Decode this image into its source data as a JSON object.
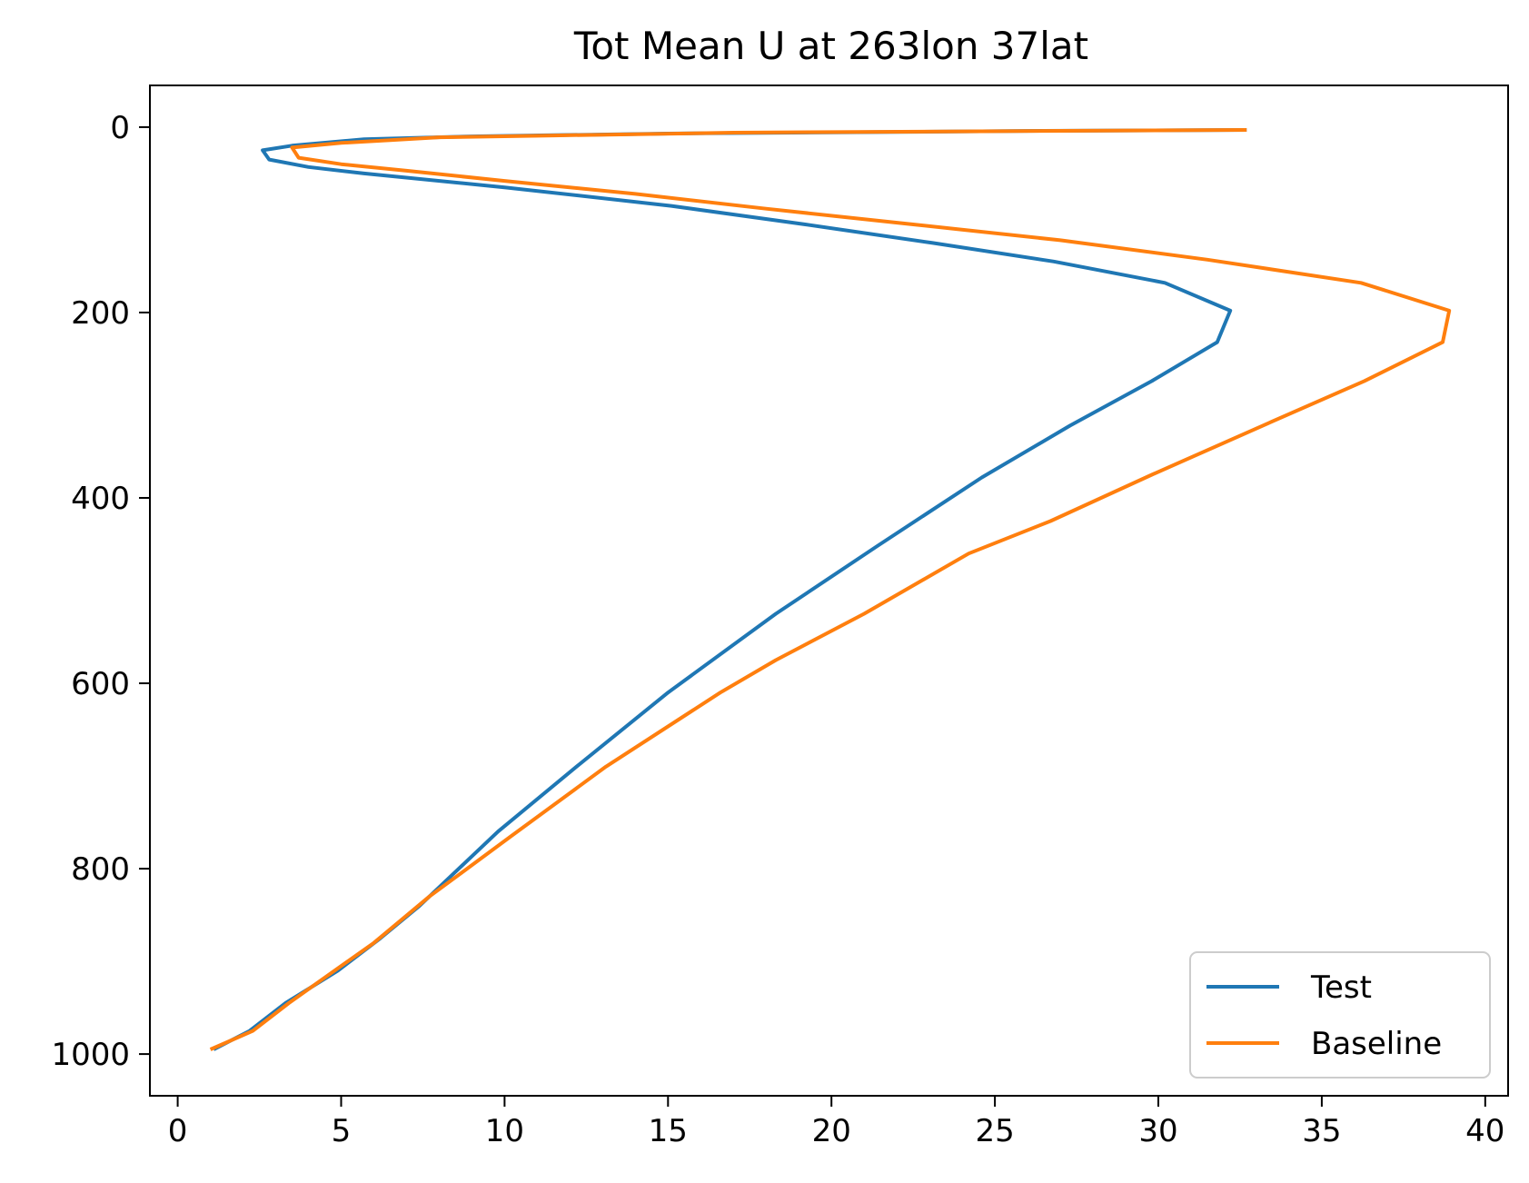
{
  "chart_data": {
    "type": "line",
    "title": "Tot Mean U at 263lon 37lat",
    "xlabel": "",
    "ylabel": "",
    "xlim": [
      -0.85,
      40.7
    ],
    "ylim": [
      1045,
      -45
    ],
    "y_inverted": true,
    "grid": false,
    "legend_position": "lower-right",
    "x_ticks": [
      0,
      5,
      10,
      15,
      20,
      25,
      30,
      35,
      40
    ],
    "y_ticks": [
      0,
      200,
      400,
      600,
      800,
      1000
    ],
    "series": [
      {
        "name": "Test",
        "color": "#1f77b4",
        "points": [
          [
            32.7,
            3
          ],
          [
            26.5,
            4
          ],
          [
            15.0,
            7
          ],
          [
            9.0,
            10
          ],
          [
            5.7,
            13
          ],
          [
            3.5,
            20
          ],
          [
            2.6,
            25
          ],
          [
            2.8,
            35
          ],
          [
            4.0,
            43
          ],
          [
            5.7,
            50
          ],
          [
            10.0,
            65
          ],
          [
            15.1,
            85
          ],
          [
            19.2,
            105
          ],
          [
            23.1,
            125
          ],
          [
            26.8,
            145
          ],
          [
            30.2,
            168
          ],
          [
            32.2,
            198
          ],
          [
            31.8,
            232
          ],
          [
            29.8,
            274
          ],
          [
            27.3,
            322
          ],
          [
            24.6,
            378
          ],
          [
            21.4,
            452
          ],
          [
            18.3,
            525
          ],
          [
            15.0,
            610
          ],
          [
            12.2,
            690
          ],
          [
            9.8,
            760
          ],
          [
            7.4,
            840
          ],
          [
            6.2,
            875
          ],
          [
            4.9,
            910
          ],
          [
            3.3,
            945
          ],
          [
            2.2,
            975
          ],
          [
            1.1,
            995
          ]
        ]
      },
      {
        "name": "Baseline",
        "color": "#ff7f0e",
        "points": [
          [
            32.7,
            3
          ],
          [
            27.0,
            4
          ],
          [
            17.0,
            6
          ],
          [
            11.5,
            9
          ],
          [
            8.0,
            11
          ],
          [
            6.5,
            14
          ],
          [
            5.0,
            17
          ],
          [
            3.5,
            22
          ],
          [
            3.7,
            33
          ],
          [
            5.0,
            40
          ],
          [
            7.0,
            47
          ],
          [
            10.0,
            58
          ],
          [
            14.0,
            72
          ],
          [
            18.0,
            88
          ],
          [
            22.5,
            105
          ],
          [
            27.0,
            122
          ],
          [
            31.5,
            143
          ],
          [
            36.2,
            168
          ],
          [
            38.9,
            198
          ],
          [
            38.7,
            232
          ],
          [
            36.3,
            274
          ],
          [
            33.2,
            322
          ],
          [
            29.8,
            375
          ],
          [
            26.7,
            425
          ],
          [
            24.2,
            460
          ],
          [
            21.0,
            525
          ],
          [
            18.3,
            575
          ],
          [
            16.6,
            610
          ],
          [
            13.1,
            690
          ],
          [
            10.2,
            765
          ],
          [
            7.7,
            830
          ],
          [
            6.0,
            880
          ],
          [
            4.6,
            915
          ],
          [
            3.4,
            945
          ],
          [
            2.3,
            975
          ],
          [
            1.0,
            995
          ]
        ]
      }
    ]
  }
}
